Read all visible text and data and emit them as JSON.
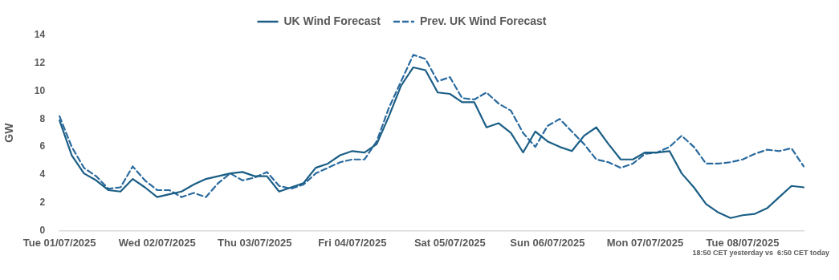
{
  "chart_data": {
    "type": "line",
    "ylabel": "GW",
    "ylim": [
      0,
      14
    ],
    "yticks": [
      0,
      2,
      4,
      6,
      8,
      10,
      12,
      14
    ],
    "grid": false,
    "legend": "top",
    "marker": "none",
    "categories": [
      "Tue 01/07/2025",
      null,
      null,
      null,
      null,
      null,
      null,
      null,
      "Wed 02/07/2025",
      null,
      null,
      null,
      null,
      null,
      null,
      null,
      "Thu 03/07/2025",
      null,
      null,
      null,
      null,
      null,
      null,
      null,
      "Fri 04/07/2025",
      null,
      null,
      null,
      null,
      null,
      null,
      null,
      "Sat 05/07/2025",
      null,
      null,
      null,
      null,
      null,
      null,
      null,
      "Sun 06/07/2025",
      null,
      null,
      null,
      null,
      null,
      null,
      null,
      "Mon 07/07/2025",
      null,
      null,
      null,
      null,
      null,
      null,
      null,
      "Tue 08/07/2025",
      null,
      null,
      null,
      null,
      null
    ],
    "series": [
      {
        "name": "UK Wind Forecast",
        "color": "#1b5e85",
        "line_style": "solid",
        "values": [
          7.9,
          5.4,
          4.1,
          3.6,
          2.9,
          2.8,
          3.7,
          3.1,
          2.4,
          2.6,
          2.8,
          3.3,
          3.7,
          3.9,
          4.1,
          4.2,
          3.9,
          3.9,
          2.8,
          3.1,
          3.4,
          4.5,
          4.8,
          5.4,
          5.7,
          5.6,
          6.2,
          8.2,
          10.4,
          11.7,
          11.5,
          9.9,
          9.8,
          9.2,
          9.2,
          7.4,
          7.7,
          7.0,
          5.6,
          7.1,
          6.4,
          6.0,
          5.7,
          6.8,
          7.4,
          6.2,
          5.1,
          5.1,
          5.6,
          5.6,
          5.7,
          4.1,
          3.1,
          1.9,
          1.3,
          0.9,
          1.1,
          1.2,
          1.6,
          2.4,
          3.2,
          3.1
        ]
      },
      {
        "name": "Prev. UK Wind Forecast",
        "color": "#2a6a9e",
        "line_style": "dashed",
        "values": [
          8.2,
          6.0,
          4.5,
          3.9,
          3.0,
          3.1,
          4.6,
          3.6,
          2.9,
          2.9,
          2.4,
          2.7,
          2.4,
          3.4,
          4.1,
          3.6,
          3.8,
          4.2,
          3.2,
          3.0,
          3.3,
          4.1,
          4.5,
          4.9,
          5.1,
          5.1,
          6.4,
          8.8,
          10.7,
          12.6,
          12.3,
          10.7,
          11.0,
          9.5,
          9.4,
          9.9,
          9.1,
          8.6,
          7.0,
          6.0,
          7.5,
          8.0,
          7.1,
          6.2,
          5.1,
          4.9,
          4.5,
          4.8,
          5.5,
          5.6,
          6.0,
          6.8,
          6.0,
          4.8,
          4.8,
          4.9,
          5.1,
          5.5,
          5.8,
          5.7,
          5.9,
          4.6
        ]
      }
    ],
    "annotations": [
      "18:50 CET yesterday vs  6:50 CET today"
    ]
  }
}
